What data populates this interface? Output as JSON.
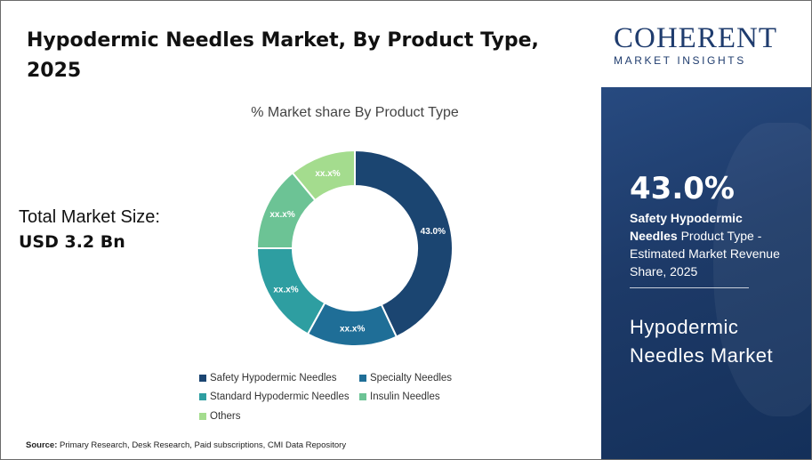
{
  "header": {
    "title": "Hypodermic Needles Market, By Product Type, 2025"
  },
  "market_size": {
    "label": "Total Market Size:",
    "value": "USD 3.2 Bn"
  },
  "chart_data": {
    "type": "pie",
    "title": "% Market share By Product Type",
    "donut": true,
    "categories": [
      "Safety Hypodermic Needles",
      "Specialty Needles",
      "Standard Hypodermic Needles",
      "Insulin Needles",
      "Others"
    ],
    "values": [
      43.0,
      15.0,
      17.0,
      14.0,
      11.0
    ],
    "data_labels": [
      "43.0%",
      "xx.x%",
      "xx.x%",
      "xx.x%",
      "xx.x%"
    ],
    "colors": [
      "#1b4571",
      "#1f6e97",
      "#2e9ea1",
      "#6cc395",
      "#a4dc8e"
    ],
    "legend_placement": "bottom"
  },
  "source": {
    "label": "Source:",
    "text": "Primary Research, Desk Research, Paid subscriptions, CMI Data Repository"
  },
  "brand": {
    "name": "COHERENT",
    "tagline": "MARKET INSIGHTS"
  },
  "highlight": {
    "percentage": "43.0%",
    "segment": "Safety Hypodermic Needles",
    "description": "Product Type - Estimated Market Revenue Share, 2025",
    "market_name": "Hypodermic Needles Market"
  }
}
